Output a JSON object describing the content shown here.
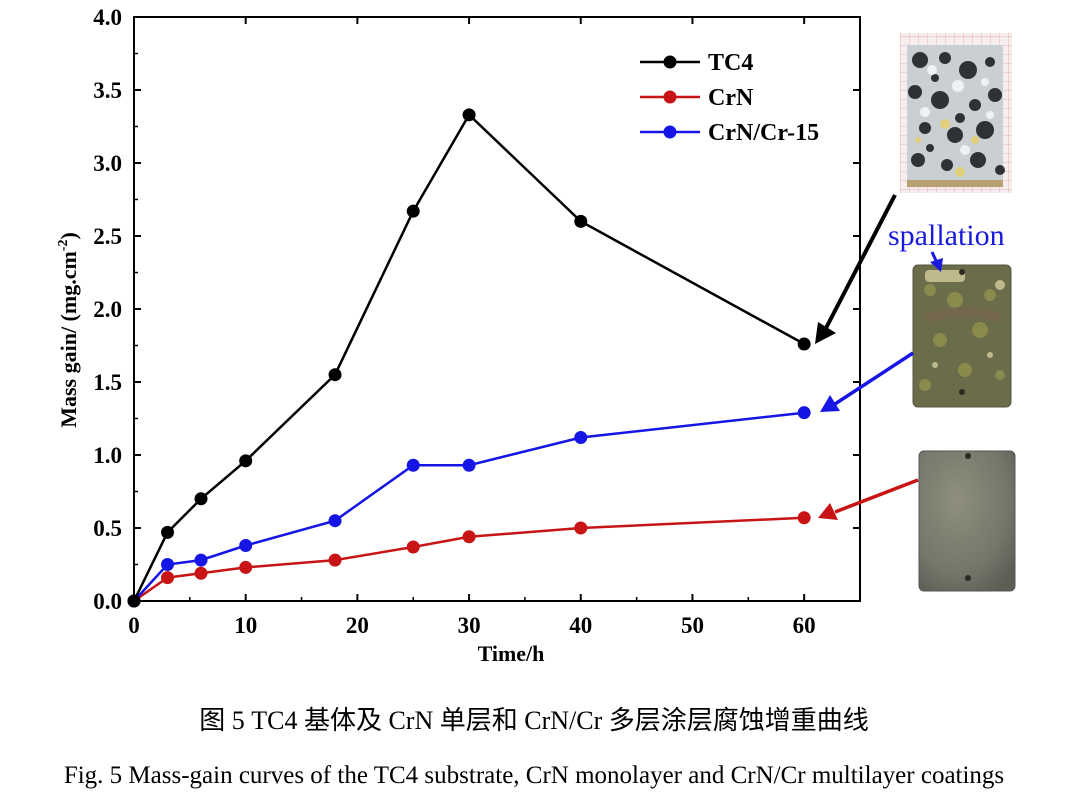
{
  "chart_data": {
    "type": "line",
    "xlabel": "Time/h",
    "ylabel": "Mass gain/ (mg.cm",
    "ylabel_sup": "-2",
    "ylabel_close": ")",
    "xlim": [
      0,
      65
    ],
    "ylim": [
      0,
      4.0
    ],
    "xticks": [
      0,
      10,
      20,
      30,
      40,
      50,
      60
    ],
    "yticks": [
      "0.0",
      "0.5",
      "1.0",
      "1.5",
      "2.0",
      "2.5",
      "3.0",
      "3.5",
      "4.0"
    ],
    "grid": false,
    "legend_position": "top-right",
    "series": [
      {
        "name": "TC4",
        "color": "#000000",
        "x": [
          0,
          3,
          6,
          10,
          18,
          25,
          30,
          40,
          60
        ],
        "y": [
          0.0,
          0.47,
          0.7,
          0.96,
          1.55,
          2.67,
          3.33,
          2.6,
          1.76
        ]
      },
      {
        "name": "CrN",
        "color": "#c81414",
        "x": [
          0,
          3,
          6,
          10,
          18,
          25,
          30,
          40,
          60
        ],
        "y": [
          0.0,
          0.16,
          0.19,
          0.23,
          0.28,
          0.37,
          0.44,
          0.5,
          0.57
        ]
      },
      {
        "name": "CrN/Cr-15",
        "color": "#1515e6",
        "x": [
          0,
          3,
          6,
          10,
          18,
          25,
          30,
          40,
          60
        ],
        "y": [
          0.0,
          0.25,
          0.28,
          0.38,
          0.55,
          0.93,
          0.93,
          1.12,
          1.29
        ]
      }
    ],
    "annotations": [
      {
        "text": "spallation",
        "color": "#1a1adf"
      }
    ]
  },
  "photos": {
    "tc4_sample": "corroded-tc4-sample-photo",
    "crn_cr_sample": "spalled-crn-cr-sample-photo",
    "crn_sample": "crn-sample-photo"
  },
  "caption": {
    "chinese": "图 5 TC4 基体及 CrN 单层和 CrN/Cr 多层涂层腐蚀增重曲线",
    "english": "Fig. 5 Mass-gain curves of the TC4 substrate, CrN monolayer and CrN/Cr multilayer coatings"
  }
}
